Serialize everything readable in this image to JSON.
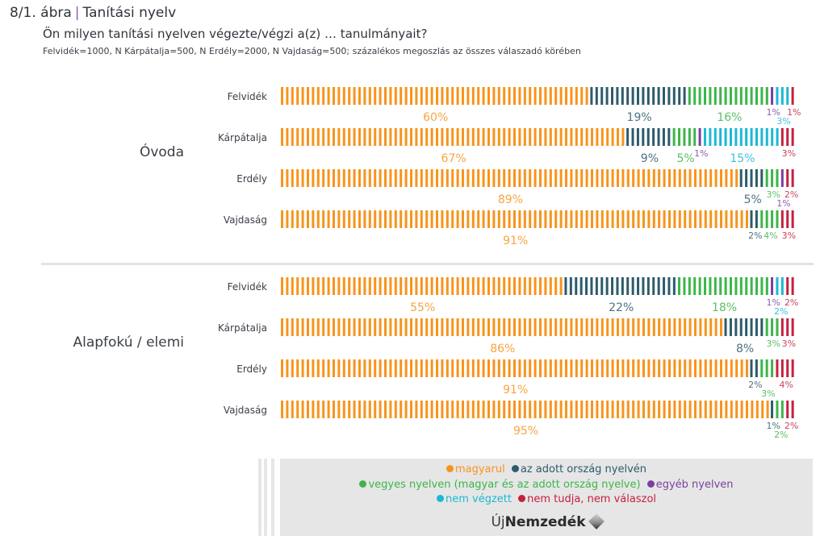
{
  "header": {
    "figure_number": "8/1. ábra",
    "figure_title": "Tanítási nyelv",
    "question": "Ön milyen tanítási nyelven végezte/végzi a(z) … tanulmányait?",
    "sample_note": "Felvidék=1000, N Kárpátalja=500, N Erdély=2000, N Vajdaság=500; százalékos megoszlás az összes válaszadó körében"
  },
  "legend": {
    "items": [
      {
        "label": "magyarul",
        "color": "#f7941d"
      },
      {
        "label": "az adott ország nyelvén",
        "color": "#2d5b6b"
      },
      {
        "label": "vegyes nyelven (magyar és az adott ország nyelve)",
        "color": "#3db549"
      },
      {
        "label": "egyéb nyelven",
        "color": "#7b3f9e"
      },
      {
        "label": "nem végzett",
        "color": "#1cb8d4"
      },
      {
        "label": "nem tudja, nem válaszol",
        "color": "#c5203e"
      }
    ],
    "logo_prefix": "Új",
    "logo_main": "Nemzedék"
  },
  "chart_data": {
    "type": "bar",
    "stacked": true,
    "orientation": "horizontal",
    "title": "Tanítási nyelv",
    "xlabel": "",
    "ylabel": "",
    "xlim": [
      0,
      100
    ],
    "series_names": [
      "magyarul",
      "az adott ország nyelvén",
      "vegyes nyelven (magyar és az adott ország nyelve)",
      "egyéb nyelven",
      "nem végzett",
      "nem tudja, nem válaszol"
    ],
    "series_colors": [
      "#f7941d",
      "#2d5b6b",
      "#3db549",
      "#7b3f9e",
      "#1cb8d4",
      "#c5203e"
    ],
    "groups": [
      {
        "name": "Óvoda",
        "rows": [
          {
            "category": "Felvidék",
            "values": [
              60,
              19,
              16,
              1,
              3,
              1
            ]
          },
          {
            "category": "Kárpátalja",
            "values": [
              67,
              9,
              5,
              1,
              15,
              3
            ]
          },
          {
            "category": "Erdély",
            "values": [
              89,
              5,
              3,
              1,
              0,
              2
            ]
          },
          {
            "category": "Vajdaság",
            "values": [
              91,
              2,
              4,
              0,
              0,
              3
            ]
          }
        ]
      },
      {
        "name": "Alapfokú / elemi",
        "rows": [
          {
            "category": "Felvidék",
            "values": [
              55,
              22,
              18,
              1,
              2,
              2
            ]
          },
          {
            "category": "Kárpátalja",
            "values": [
              86,
              8,
              3,
              0,
              0,
              3
            ]
          },
          {
            "category": "Erdély",
            "values": [
              91,
              2,
              3,
              0,
              0,
              4
            ]
          },
          {
            "category": "Vajdaság",
            "values": [
              95,
              1,
              2,
              0,
              0,
              2
            ]
          }
        ]
      }
    ]
  }
}
